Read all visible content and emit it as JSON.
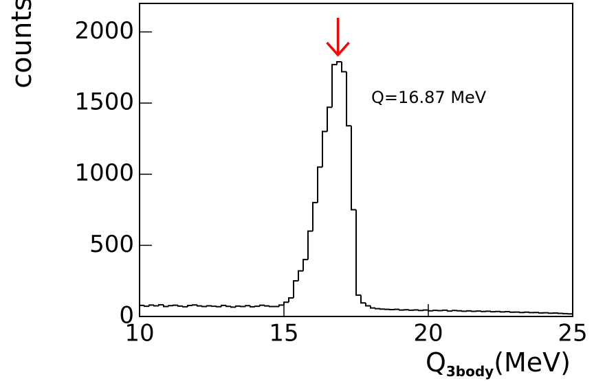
{
  "chart_data": {
    "type": "histogram",
    "ylabel": "counts",
    "xlabel": "Q",
    "xlabel_subscript": "3body",
    "xlabel_unit": "(MeV)",
    "annotation": {
      "text": "Q=16.87 MeV",
      "arrow_x": 16.87,
      "arrow_color": "#ff0000"
    },
    "color": "#000000",
    "bins": [
      10,
      10.167,
      10.333,
      10.5,
      10.667,
      10.833,
      11,
      11.167,
      11.333,
      11.5,
      11.667,
      11.833,
      12,
      12.167,
      12.333,
      12.5,
      12.667,
      12.833,
      13,
      13.167,
      13.333,
      13.5,
      13.667,
      13.833,
      14,
      14.167,
      14.333,
      14.5,
      14.667,
      14.833,
      15,
      15.167,
      15.333,
      15.5,
      15.667,
      15.833,
      16,
      16.167,
      16.333,
      16.5,
      16.667,
      16.833,
      17,
      17.167,
      17.333,
      17.5,
      17.667,
      17.833,
      18,
      18.167,
      18.333,
      18.5,
      18.667,
      18.833,
      19,
      19.167,
      19.333,
      19.5,
      19.667,
      19.833,
      20,
      20.167,
      20.333,
      20.5,
      20.667,
      20.833,
      21,
      21.167,
      21.333,
      21.5,
      21.667,
      21.833,
      22,
      22.167,
      22.333,
      22.5,
      22.667,
      22.833,
      23,
      23.167,
      23.333,
      23.5,
      23.667,
      23.833,
      24,
      24.167,
      24.333,
      24.5,
      24.667,
      24.833,
      25
    ],
    "values": [
      78,
      72,
      80,
      75,
      82,
      70,
      76,
      79,
      73,
      68,
      77,
      81,
      74,
      70,
      75,
      72,
      69,
      78,
      71,
      66,
      73,
      70,
      76,
      68,
      72,
      79,
      74,
      70,
      70,
      80,
      100,
      130,
      250,
      320,
      400,
      600,
      800,
      1050,
      1300,
      1470,
      1770,
      1790,
      1720,
      1340,
      750,
      150,
      95,
      75,
      60,
      55,
      52,
      50,
      48,
      50,
      45,
      47,
      44,
      46,
      42,
      45,
      40,
      43,
      41,
      44,
      38,
      42,
      40,
      37,
      39,
      36,
      38,
      35,
      37,
      33,
      35,
      32,
      34,
      30,
      31,
      28,
      30,
      27,
      28,
      25,
      26,
      23,
      24,
      22,
      20,
      18
    ],
    "xlim": [
      10,
      25
    ],
    "xticks": [
      10,
      15,
      20,
      25
    ],
    "ylim": [
      0,
      2200
    ],
    "yticks": [
      0,
      500,
      1000,
      1500,
      2000
    ]
  }
}
